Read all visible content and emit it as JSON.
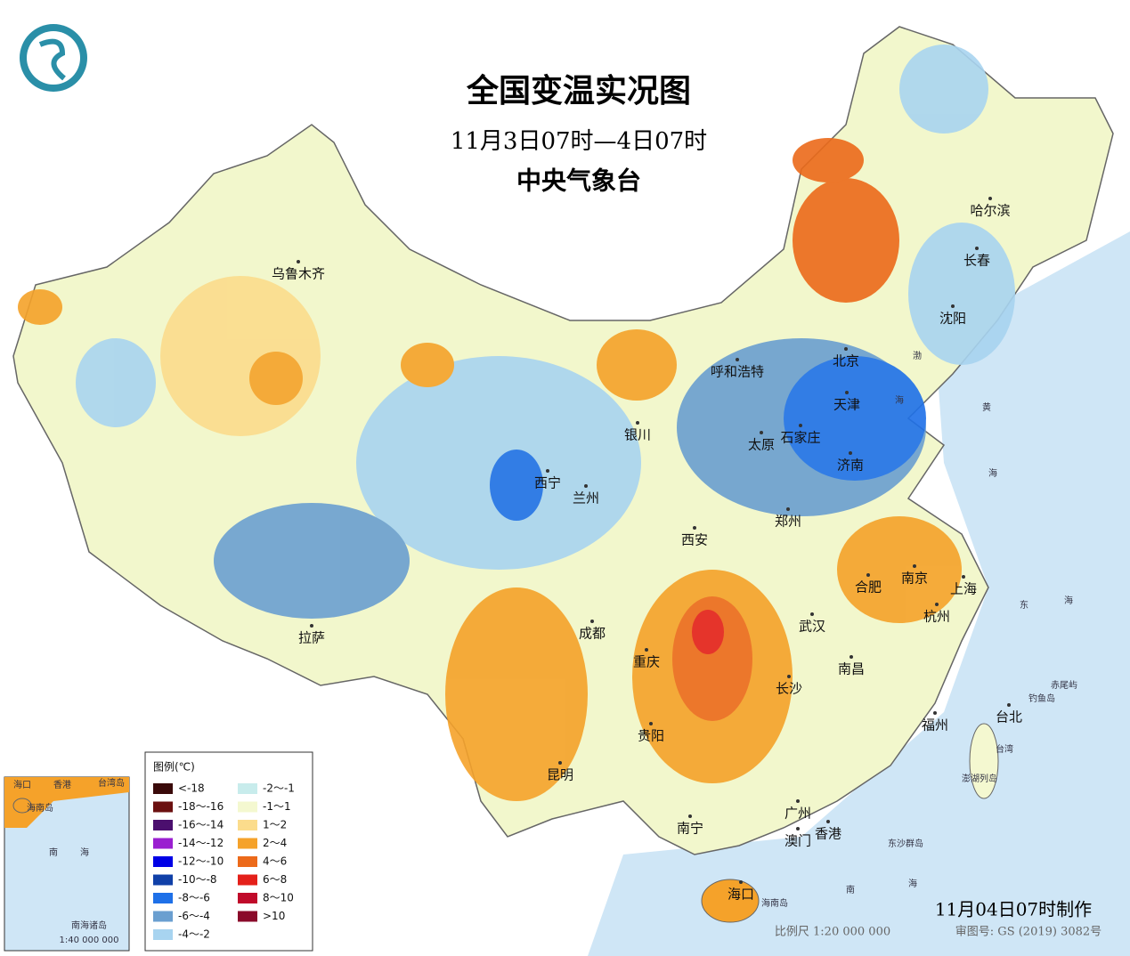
{
  "header": {
    "title": "全国变温实况图",
    "subtitle": "11月3日07时—4日07时",
    "agency": "中央气象台"
  },
  "cities": [
    "乌鲁木齐",
    "哈尔滨",
    "长春",
    "沈阳",
    "呼和浩特",
    "北京",
    "天津",
    "石家庄",
    "太原",
    "济南",
    "银川",
    "西宁",
    "兰州",
    "郑州",
    "西安",
    "南京",
    "合肥",
    "上海",
    "杭州",
    "武汉",
    "成都",
    "重庆",
    "长沙",
    "南昌",
    "拉萨",
    "贵阳",
    "福州",
    "台北",
    "昆明",
    "南宁",
    "广州",
    "澳门",
    "香港",
    "海口"
  ],
  "places": [
    "赤尾屿",
    "钓鱼岛",
    "台湾",
    "澎湖列岛",
    "东沙群岛",
    "海南岛",
    "黄",
    "海",
    "东",
    "海",
    "南",
    "海",
    "渤",
    "海"
  ],
  "legend": {
    "title": "图例(℃)",
    "items": [
      {
        "label": "<-18",
        "color": "#3a0a0a"
      },
      {
        "label": "-18～-16",
        "color": "#6b1010"
      },
      {
        "label": "-16～-14",
        "color": "#4b0f6e"
      },
      {
        "label": "-14～-12",
        "color": "#9a1fd0"
      },
      {
        "label": "-12～-10",
        "color": "#0000e6"
      },
      {
        "label": "-10～-8",
        "color": "#1040a8"
      },
      {
        "label": "-8～-6",
        "color": "#1e70e8"
      },
      {
        "label": "-6～-4",
        "color": "#6a9fd0"
      },
      {
        "label": "-4～-2",
        "color": "#a8d4f0"
      },
      {
        "label": "-2～-1",
        "color": "#c8ecec"
      },
      {
        "label": "-1～1",
        "color": "#f4f8d0"
      },
      {
        "label": "1～2",
        "color": "#fbdc8c"
      },
      {
        "label": "2～4",
        "color": "#f5a22a"
      },
      {
        "label": "4～6",
        "color": "#ec6a1a"
      },
      {
        "label": "6～8",
        "color": "#e4201a"
      },
      {
        "label": "8～10",
        "color": "#c00a2a"
      },
      {
        "label": ">10",
        "color": "#8a0a2a"
      }
    ]
  },
  "inset": {
    "title": "南海诸岛",
    "scale": "1:40 000 000",
    "labels": [
      "海口",
      "海南岛",
      "香港",
      "台湾岛",
      "南",
      "海"
    ]
  },
  "footer": {
    "made": "11月04日07时制作",
    "scale": "比例尺 1:20 000 000",
    "approval": "审图号: GS (2019) 3082号"
  }
}
